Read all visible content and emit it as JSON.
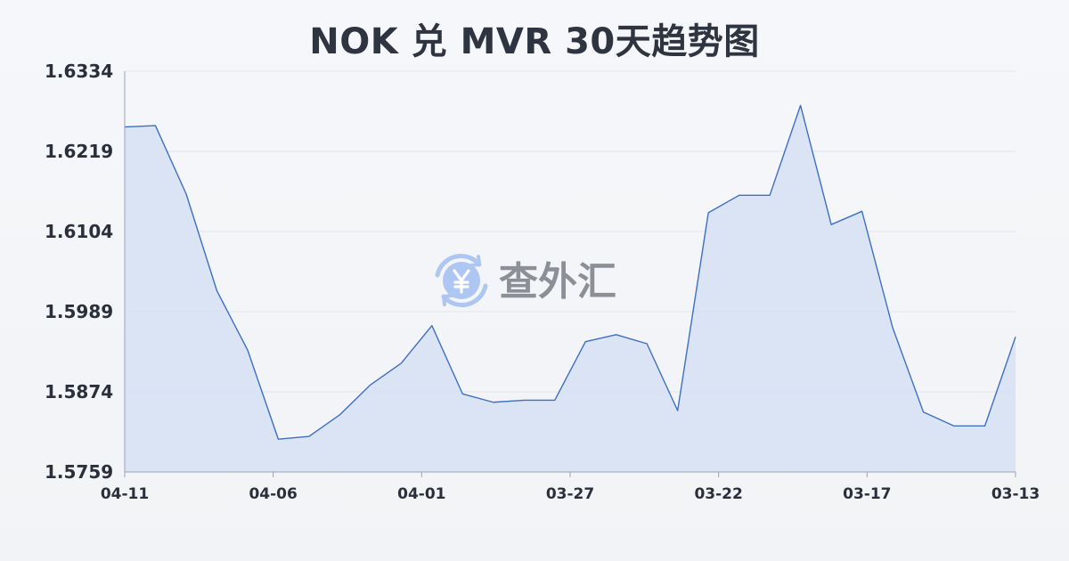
{
  "watermark": {
    "text": "查外汇"
  },
  "chart_data": {
    "type": "area",
    "title": "NOK 兑 MVR 30天趋势图",
    "xlabel": "",
    "ylabel": "",
    "ylim": [
      1.5759,
      1.6334
    ],
    "yticks": [
      "1.6334",
      "1.6219",
      "1.6104",
      "1.5989",
      "1.5874",
      "1.5759"
    ],
    "xticks": [
      "04-11",
      "04-06",
      "04-01",
      "03-27",
      "03-22",
      "03-17",
      "03-13"
    ],
    "grid": true,
    "legend": "none",
    "colors": {
      "line": "#3d6fc4",
      "fill": "#d6e1f5"
    },
    "series": [
      {
        "values": [
          1.6254,
          1.6256,
          1.6158,
          1.6019,
          1.5934,
          1.5806,
          1.581,
          1.5841,
          1.5884,
          1.5915,
          1.5969,
          1.5871,
          1.5859,
          1.5862,
          1.5862,
          1.5946,
          1.5956,
          1.5943,
          1.5847,
          1.6131,
          1.6156,
          1.6156,
          1.6285,
          1.6114,
          1.6133,
          1.5966,
          1.5845,
          1.5825,
          1.5825,
          1.5953
        ]
      }
    ]
  }
}
